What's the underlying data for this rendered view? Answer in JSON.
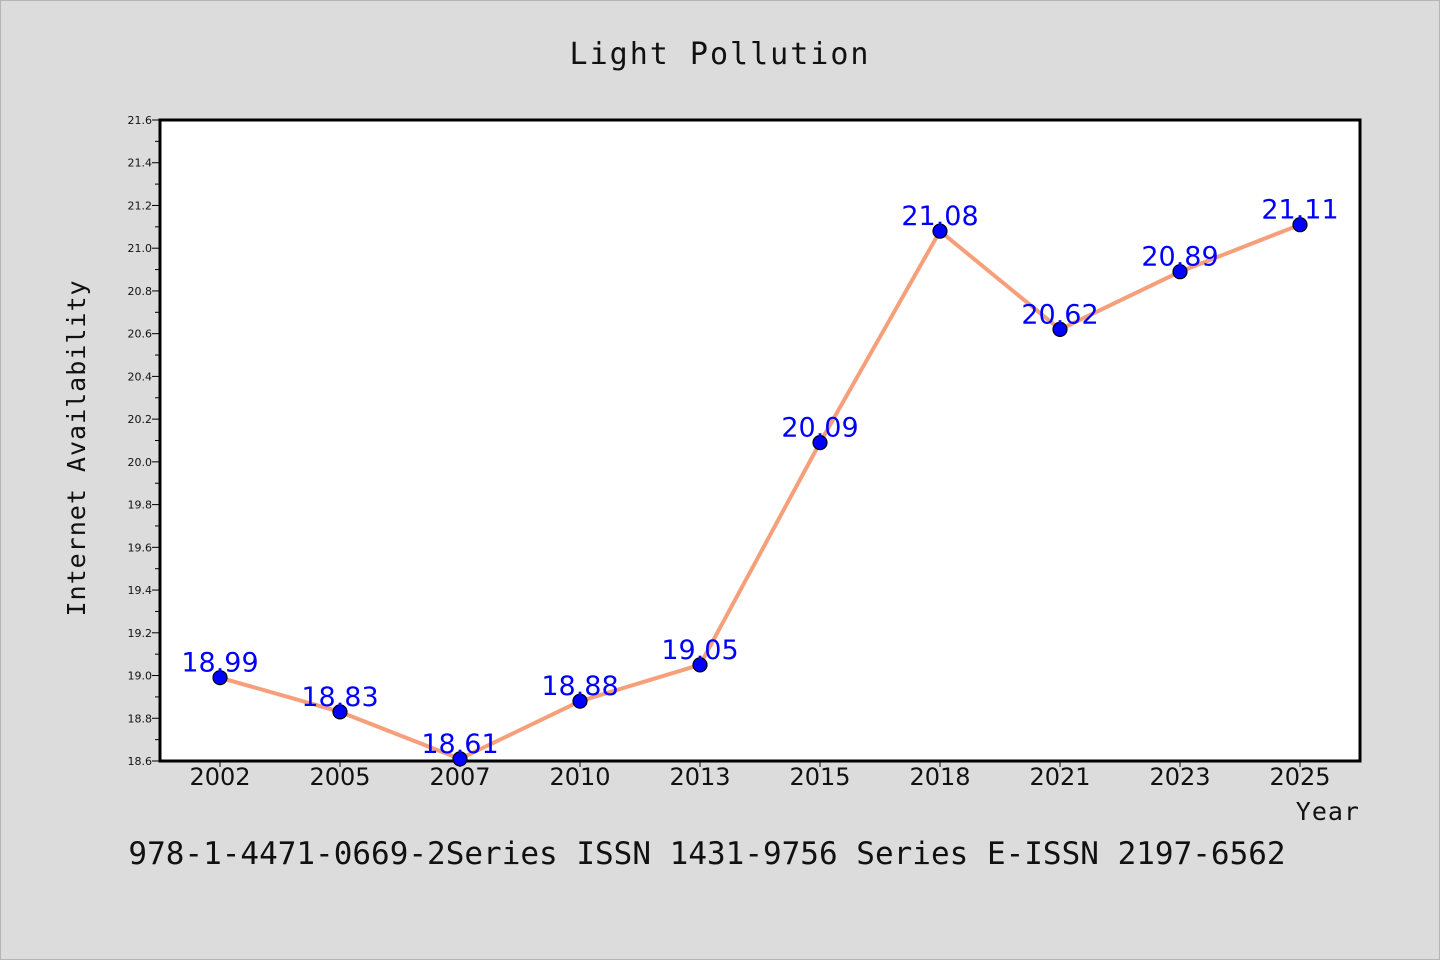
{
  "footer": "978-1-4471-0669-2Series ISSN 1431-9756 Series E-ISSN 2197-6562",
  "chart_data": {
    "type": "line",
    "title": "Light Pollution",
    "xlabel": "Year",
    "ylabel": "Internet Availability",
    "categories": [
      "2002",
      "2005",
      "2007",
      "2010",
      "2013",
      "2015",
      "2018",
      "2021",
      "2023",
      "2025"
    ],
    "series": [
      {
        "values": [
          18.99,
          18.83,
          18.61,
          18.88,
          19.05,
          20.09,
          21.08,
          20.62,
          20.89,
          21.11
        ],
        "line_color": "#f5a07a",
        "marker_color": "#0000ff",
        "label_color": "#0000ff"
      }
    ],
    "data_labels": [
      "18.99",
      "18.83",
      "18.61",
      "18.88",
      "19.05",
      "20.09",
      "21.08",
      "20.62",
      "20.89",
      "21.11"
    ],
    "ylim": [
      18.6,
      21.6
    ],
    "yticks": [
      "18.6",
      "18.8",
      "19.0",
      "19.2",
      "19.4",
      "19.6",
      "19.8",
      "20.0",
      "20.2",
      "20.4",
      "20.6",
      "20.8",
      "21.0",
      "21.2",
      "21.4",
      "21.6"
    ],
    "grid": false,
    "legend": "none"
  }
}
